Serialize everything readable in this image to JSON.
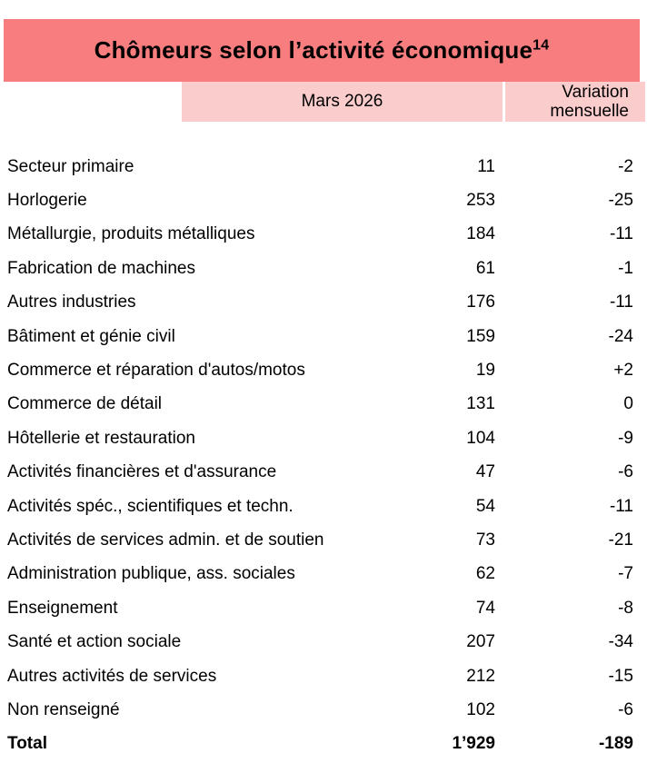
{
  "title": {
    "text": "Chômeurs selon l’activité économique",
    "footnote_ref": "14"
  },
  "columns": {
    "period_label": "Mars 2026",
    "variation_label_line1": "Variation",
    "variation_label_line2": "mensuelle"
  },
  "rows": [
    {
      "label": "Secteur primaire",
      "value": "11",
      "variation": "-2"
    },
    {
      "label": "Horlogerie",
      "value": "253",
      "variation": "-25"
    },
    {
      "label": "Métallurgie, produits métalliques",
      "value": "184",
      "variation": "-11"
    },
    {
      "label": "Fabrication de machines",
      "value": "61",
      "variation": "-1"
    },
    {
      "label": "Autres industries",
      "value": "176",
      "variation": "-11"
    },
    {
      "label": "Bâtiment et génie civil",
      "value": "159",
      "variation": "-24"
    },
    {
      "label": "Commerce et réparation d'autos/motos",
      "value": "19",
      "variation": "+2"
    },
    {
      "label": "Commerce de détail",
      "value": "131",
      "variation": "0"
    },
    {
      "label": "Hôtellerie et restauration",
      "value": "104",
      "variation": "-9"
    },
    {
      "label": "Activités financières et d'assurance",
      "value": "47",
      "variation": "-6"
    },
    {
      "label": "Activités spéc., scientifiques et techn.",
      "value": "54",
      "variation": "-11"
    },
    {
      "label": "Activités de services admin. et de soutien",
      "value": "73",
      "variation": "-21"
    },
    {
      "label": "Administration publique, ass. sociales",
      "value": "62",
      "variation": "-7"
    },
    {
      "label": "Enseignement",
      "value": "74",
      "variation": "-8"
    },
    {
      "label": "Santé et action sociale",
      "value": "207",
      "variation": "-34"
    },
    {
      "label": "Autres activités de services",
      "value": "212",
      "variation": "-15"
    },
    {
      "label": "Non renseigné",
      "value": "102",
      "variation": "-6"
    }
  ],
  "total": {
    "label": "Total",
    "value": "1’929",
    "variation": "-189"
  },
  "colors": {
    "header_bg": "#F87D7F",
    "subheader_bg": "#FBCCCC",
    "text": "#000000"
  }
}
